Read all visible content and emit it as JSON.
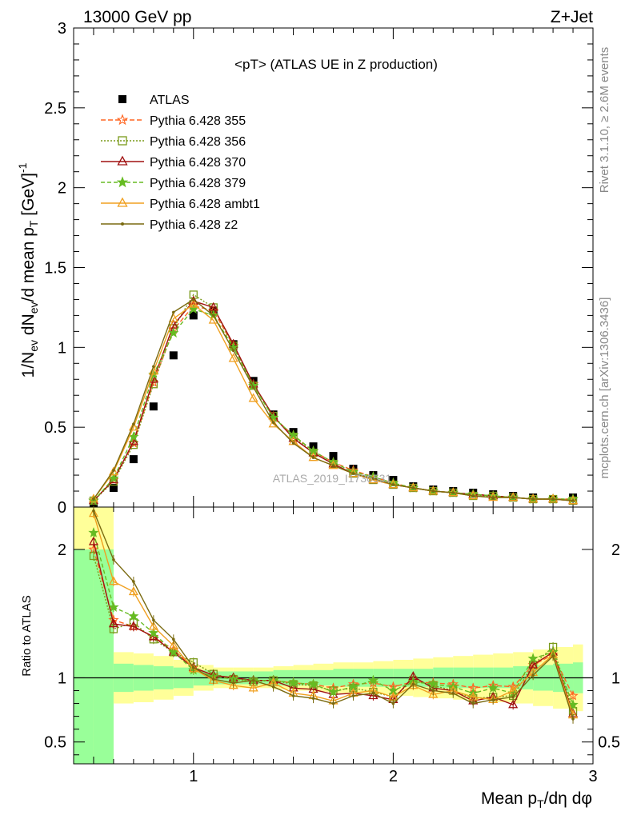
{
  "header": {
    "left": "13000 GeV pp",
    "right": "Z+Jet",
    "plot_title": "<pT> (ATLAS UE in Z production)",
    "watermark": "ATLAS_2019_I1736531",
    "side_top": "Rivet 3.1.10, ≥ 2.6M events",
    "side_bottom": "mcplots.cern.ch [arXiv:1306.3436]"
  },
  "chart_data": [
    {
      "panel": "main",
      "type": "line",
      "title": "<pT> (ATLAS UE in Z production)",
      "xlabel": "Mean p_T/dη dφ",
      "ylabel": "1/N_ev dN_ev/d mean p_T [GeV]^-1",
      "xlim": [
        0.4,
        3.0
      ],
      "ylim": [
        0,
        3
      ],
      "y_ticks": [
        "0",
        "0.5",
        "1",
        "1.5",
        "2",
        "2.5",
        "3"
      ],
      "x": [
        0.5,
        0.6,
        0.7,
        0.8,
        0.9,
        1.0,
        1.1,
        1.2,
        1.3,
        1.4,
        1.5,
        1.6,
        1.7,
        1.8,
        1.9,
        2.0,
        2.1,
        2.2,
        2.3,
        2.4,
        2.5,
        2.6,
        2.7,
        2.8,
        2.9
      ],
      "legend_position": "top-left",
      "series": [
        {
          "name": "ATLAS",
          "color": "#000000",
          "marker": "square-filled",
          "dash": "none",
          "values": [
            0.02,
            0.12,
            0.3,
            0.63,
            0.95,
            1.2,
            1.23,
            1.02,
            0.79,
            0.58,
            0.47,
            0.38,
            0.32,
            0.24,
            0.2,
            0.17,
            0.13,
            0.11,
            0.1,
            0.09,
            0.08,
            0.07,
            0.06,
            0.05,
            0.06
          ]
        },
        {
          "name": "Pythia 6.428 355",
          "color": "#ff6622",
          "marker": "star-open",
          "dash": "6,3",
          "values": [
            0.04,
            0.17,
            0.4,
            0.78,
            1.11,
            1.26,
            1.23,
            1.01,
            0.77,
            0.56,
            0.45,
            0.35,
            0.28,
            0.23,
            0.19,
            0.15,
            0.12,
            0.1,
            0.09,
            0.08,
            0.07,
            0.06,
            0.05,
            0.05,
            0.05
          ]
        },
        {
          "name": "Pythia 6.428 356",
          "color": "#7a9a1a",
          "marker": "square-open",
          "dash": "2,2",
          "values": [
            0.04,
            0.16,
            0.39,
            0.77,
            1.12,
            1.33,
            1.25,
            1.01,
            0.76,
            0.57,
            0.44,
            0.34,
            0.27,
            0.21,
            0.17,
            0.14,
            0.12,
            0.1,
            0.09,
            0.07,
            0.07,
            0.06,
            0.05,
            0.05,
            0.04
          ]
        },
        {
          "name": "Pythia 6.428 370",
          "color": "#a01010",
          "marker": "triangle-open",
          "dash": "none",
          "values": [
            0.04,
            0.17,
            0.41,
            0.8,
            1.14,
            1.29,
            1.25,
            1.02,
            0.77,
            0.57,
            0.43,
            0.34,
            0.27,
            0.21,
            0.17,
            0.14,
            0.12,
            0.1,
            0.09,
            0.08,
            0.07,
            0.06,
            0.05,
            0.05,
            0.04
          ]
        },
        {
          "name": "Pythia 6.428 379",
          "color": "#66bb22",
          "marker": "star-filled",
          "dash": "5,3",
          "values": [
            0.04,
            0.18,
            0.44,
            0.83,
            1.09,
            1.24,
            1.2,
            1.0,
            0.76,
            0.56,
            0.45,
            0.35,
            0.28,
            0.22,
            0.19,
            0.15,
            0.12,
            0.1,
            0.09,
            0.08,
            0.07,
            0.06,
            0.05,
            0.05,
            0.05
          ]
        },
        {
          "name": "Pythia 6.428 ambt1",
          "color": "#f0a020",
          "marker": "triangle-open",
          "dash": "none",
          "values": [
            0.05,
            0.22,
            0.5,
            0.85,
            1.18,
            1.27,
            1.17,
            0.93,
            0.68,
            0.52,
            0.41,
            0.31,
            0.26,
            0.21,
            0.17,
            0.14,
            0.12,
            0.1,
            0.09,
            0.07,
            0.06,
            0.06,
            0.05,
            0.05,
            0.04
          ]
        },
        {
          "name": "Pythia 6.428 z2",
          "color": "#7a6a10",
          "marker": "dot",
          "dash": "none",
          "values": [
            0.05,
            0.23,
            0.52,
            0.88,
            1.22,
            1.3,
            1.2,
            0.98,
            0.75,
            0.53,
            0.4,
            0.31,
            0.26,
            0.21,
            0.18,
            0.14,
            0.12,
            0.1,
            0.09,
            0.07,
            0.06,
            0.06,
            0.05,
            0.05,
            0.04
          ]
        }
      ]
    },
    {
      "panel": "ratio",
      "type": "line",
      "xlabel": "Mean p_T/dη dφ",
      "ylabel": "Ratio to ATLAS",
      "xlim": [
        0.4,
        3.0
      ],
      "ylim": [
        0.33,
        2.33
      ],
      "y_ticks": [
        "0.5",
        "1",
        "2"
      ],
      "x_ticks": [
        "1",
        "2",
        "3"
      ],
      "x": [
        0.5,
        0.6,
        0.7,
        0.8,
        0.9,
        1.0,
        1.1,
        1.2,
        1.3,
        1.4,
        1.5,
        1.6,
        1.7,
        1.8,
        1.9,
        2.0,
        2.1,
        2.2,
        2.3,
        2.4,
        2.5,
        2.6,
        2.7,
        2.8,
        2.9
      ],
      "band_edges": [
        0.4,
        0.5,
        0.6,
        0.7,
        0.8,
        0.9,
        1.0,
        1.1,
        1.2,
        1.3,
        1.4,
        1.5,
        1.6,
        1.7,
        1.8,
        1.9,
        2.0,
        2.1,
        2.2,
        2.3,
        2.4,
        2.5,
        2.6,
        2.7,
        2.8,
        2.9,
        2.95
      ],
      "band_inner_color": "#99ff99",
      "band_outer_color": "#ffff99",
      "band_inner": [
        [
          0.33,
          2.0
        ],
        [
          0.33,
          2.0
        ],
        [
          0.89,
          1.11
        ],
        [
          0.9,
          1.1
        ],
        [
          0.91,
          1.09
        ],
        [
          0.92,
          1.08
        ],
        [
          0.94,
          1.06
        ],
        [
          0.95,
          1.05
        ],
        [
          0.95,
          1.05
        ],
        [
          0.95,
          1.05
        ],
        [
          0.94,
          1.06
        ],
        [
          0.94,
          1.06
        ],
        [
          0.94,
          1.06
        ],
        [
          0.93,
          1.07
        ],
        [
          0.93,
          1.07
        ],
        [
          0.93,
          1.07
        ],
        [
          0.93,
          1.07
        ],
        [
          0.93,
          1.07
        ],
        [
          0.92,
          1.08
        ],
        [
          0.92,
          1.08
        ],
        [
          0.92,
          1.08
        ],
        [
          0.92,
          1.08
        ],
        [
          0.91,
          1.09
        ],
        [
          0.9,
          1.1
        ],
        [
          0.89,
          1.11
        ],
        [
          0.88,
          1.12
        ]
      ],
      "band_outer": [
        [
          0.33,
          2.33
        ],
        [
          0.33,
          2.33
        ],
        [
          0.8,
          1.2
        ],
        [
          0.81,
          1.19
        ],
        [
          0.83,
          1.17
        ],
        [
          0.86,
          1.14
        ],
        [
          0.9,
          1.1
        ],
        [
          0.92,
          1.08
        ],
        [
          0.92,
          1.08
        ],
        [
          0.92,
          1.08
        ],
        [
          0.91,
          1.09
        ],
        [
          0.9,
          1.1
        ],
        [
          0.89,
          1.11
        ],
        [
          0.88,
          1.12
        ],
        [
          0.88,
          1.12
        ],
        [
          0.87,
          1.13
        ],
        [
          0.86,
          1.14
        ],
        [
          0.85,
          1.15
        ],
        [
          0.84,
          1.16
        ],
        [
          0.83,
          1.17
        ],
        [
          0.83,
          1.18
        ],
        [
          0.81,
          1.19
        ],
        [
          0.8,
          1.2
        ],
        [
          0.78,
          1.22
        ],
        [
          0.76,
          1.24
        ],
        [
          0.74,
          1.26
        ]
      ],
      "reference_line": 1,
      "series": [
        {
          "name": "Pythia 6.428 355",
          "color": "#ff6622",
          "marker": "star-open",
          "dash": "6,3",
          "values": [
            2.0,
            1.45,
            1.4,
            1.32,
            1.22,
            1.08,
            1.02,
            1.0,
            0.98,
            0.98,
            0.96,
            0.95,
            0.92,
            0.95,
            0.96,
            0.93,
            0.97,
            0.96,
            0.95,
            0.92,
            0.94,
            0.93,
            1.1,
            1.18,
            0.86
          ]
        },
        {
          "name": "Pythia 6.428 356",
          "color": "#7a9a1a",
          "marker": "square-open",
          "dash": "2,2",
          "values": [
            1.95,
            1.38,
            1.43,
            1.3,
            1.2,
            1.12,
            1.03,
            0.99,
            0.97,
            0.98,
            0.95,
            0.94,
            0.9,
            0.92,
            0.89,
            0.85,
            0.98,
            0.94,
            0.9,
            0.84,
            0.85,
            0.86,
            1.1,
            1.24,
            0.74
          ]
        },
        {
          "name": "Pythia 6.428 370",
          "color": "#a01010",
          "marker": "triangle-open",
          "dash": "none",
          "values": [
            2.06,
            1.42,
            1.4,
            1.32,
            1.2,
            1.08,
            1.02,
            1.0,
            0.98,
            0.98,
            0.92,
            0.91,
            0.87,
            0.88,
            0.86,
            0.83,
            1.01,
            0.92,
            0.9,
            0.82,
            0.85,
            0.79,
            1.1,
            1.2,
            0.72
          ]
        },
        {
          "name": "Pythia 6.428 379",
          "color": "#66bb22",
          "marker": "star-filled",
          "dash": "5,3",
          "values": [
            2.13,
            1.55,
            1.48,
            1.35,
            1.2,
            1.06,
            1.01,
            0.99,
            0.98,
            0.98,
            0.96,
            0.95,
            0.89,
            0.93,
            0.98,
            0.9,
            0.97,
            0.95,
            0.93,
            0.88,
            0.92,
            0.88,
            1.15,
            1.2,
            0.79
          ]
        },
        {
          "name": "Pythia 6.428 ambt1",
          "color": "#f0a020",
          "marker": "triangle-open",
          "dash": "none",
          "values": [
            2.28,
            1.75,
            1.67,
            1.4,
            1.25,
            1.07,
            0.98,
            0.94,
            0.92,
            0.96,
            0.88,
            0.86,
            0.82,
            0.88,
            0.9,
            0.85,
            0.94,
            0.87,
            0.9,
            0.85,
            0.83,
            0.9,
            1.04,
            1.18,
            0.71
          ]
        },
        {
          "name": "Pythia 6.428 z2",
          "color": "#7a6a10",
          "marker": "dot",
          "dash": "none",
          "values": [
            2.3,
            1.92,
            1.75,
            1.45,
            1.3,
            1.08,
            0.99,
            0.96,
            0.98,
            0.93,
            0.86,
            0.84,
            0.8,
            0.86,
            0.88,
            0.8,
            0.95,
            0.9,
            0.88,
            0.8,
            0.83,
            0.85,
            1.02,
            1.17,
            0.68
          ]
        }
      ]
    }
  ]
}
